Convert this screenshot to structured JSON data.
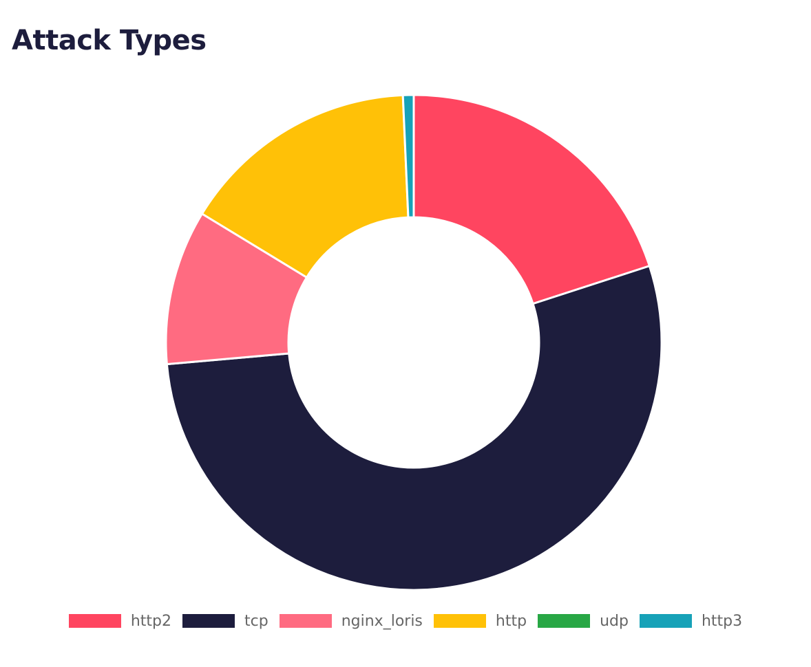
{
  "chart_data": {
    "type": "pie",
    "variant": "doughnut",
    "title": "Attack Types",
    "categories": [
      "http2",
      "tcp",
      "nginx_loris",
      "http",
      "udp",
      "http3"
    ],
    "values": [
      20.0,
      53.6,
      10.1,
      15.6,
      0.0,
      0.7
    ],
    "colors": [
      "#ff4560",
      "#1d1d3d",
      "#ff6b81",
      "#ffc107",
      "#28a745",
      "#17a2b8"
    ],
    "legend": "bottom",
    "start_angle": "top, clockwise"
  }
}
